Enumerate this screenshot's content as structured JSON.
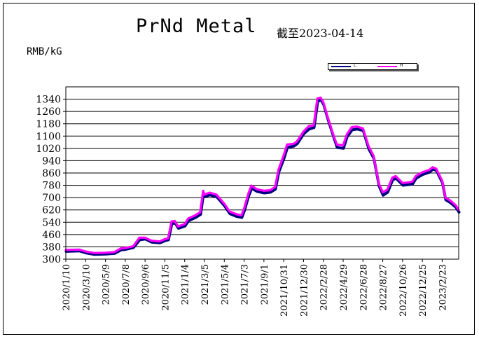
{
  "chart_data": {
    "type": "line",
    "title": "PrNd Metal",
    "subtitle": "截至2023-04-14",
    "ylabel": "RMB/kG",
    "xlabel": "",
    "ylim": [
      300,
      1420
    ],
    "yticks": [
      300,
      380,
      460,
      540,
      620,
      700,
      780,
      860,
      940,
      1020,
      1100,
      1180,
      1260,
      1340
    ],
    "xlim": [
      "2020-01-10",
      "2023-04-14"
    ],
    "xticks": [
      "2020/1/10",
      "2020/3/10",
      "2020/5/9",
      "2020/7/8",
      "2020/9/6",
      "2020/11/5",
      "2021/1/4",
      "2021/3/5",
      "2021/5/4",
      "2021/7/3",
      "2021/9/1",
      "2021/10/31",
      "2021/12/30",
      "2022/2/28",
      "2022/4/29",
      "2022/6/28",
      "2022/8/27",
      "2022/10/26",
      "2022/12/25",
      "2023/2/23"
    ],
    "grid": "horizontal",
    "legend_position": "top-right",
    "series": [
      {
        "name": "L",
        "color": "#000080",
        "points": [
          [
            "2020-01-10",
            355
          ],
          [
            "2020-02-20",
            358
          ],
          [
            "2020-03-10",
            345
          ],
          [
            "2020-04-05",
            335
          ],
          [
            "2020-05-09",
            338
          ],
          [
            "2020-06-05",
            342
          ],
          [
            "2020-06-25",
            365
          ],
          [
            "2020-07-08",
            368
          ],
          [
            "2020-08-01",
            380
          ],
          [
            "2020-08-20",
            430
          ],
          [
            "2020-09-06",
            435
          ],
          [
            "2020-09-25",
            415
          ],
          [
            "2020-10-20",
            410
          ],
          [
            "2020-11-05",
            425
          ],
          [
            "2020-11-15",
            430
          ],
          [
            "2020-11-25",
            535
          ],
          [
            "2020-12-05",
            540
          ],
          [
            "2020-12-15",
            505
          ],
          [
            "2021-01-04",
            520
          ],
          [
            "2021-01-15",
            555
          ],
          [
            "2021-02-05",
            575
          ],
          [
            "2021-02-20",
            595
          ],
          [
            "2021-03-01",
            728
          ],
          [
            "2021-03-05",
            710
          ],
          [
            "2021-03-20",
            722
          ],
          [
            "2021-04-10",
            710
          ],
          [
            "2021-05-04",
            650
          ],
          [
            "2021-05-20",
            600
          ],
          [
            "2021-06-10",
            582
          ],
          [
            "2021-06-25",
            575
          ],
          [
            "2021-07-03",
            620
          ],
          [
            "2021-07-15",
            710
          ],
          [
            "2021-07-25",
            765
          ],
          [
            "2021-08-10",
            745
          ],
          [
            "2021-09-01",
            735
          ],
          [
            "2021-09-20",
            740
          ],
          [
            "2021-10-05",
            760
          ],
          [
            "2021-10-15",
            870
          ],
          [
            "2021-10-31",
            960
          ],
          [
            "2021-11-10",
            1030
          ],
          [
            "2021-11-30",
            1040
          ],
          [
            "2021-12-10",
            1055
          ],
          [
            "2021-12-30",
            1120
          ],
          [
            "2022-01-15",
            1150
          ],
          [
            "2022-01-30",
            1160
          ],
          [
            "2022-02-10",
            1330
          ],
          [
            "2022-02-20",
            1340
          ],
          [
            "2022-02-28",
            1310
          ],
          [
            "2022-03-15",
            1200
          ],
          [
            "2022-03-30",
            1100
          ],
          [
            "2022-04-10",
            1030
          ],
          [
            "2022-04-29",
            1025
          ],
          [
            "2022-05-10",
            1100
          ],
          [
            "2022-05-25",
            1145
          ],
          [
            "2022-06-10",
            1150
          ],
          [
            "2022-06-28",
            1140
          ],
          [
            "2022-07-15",
            1020
          ],
          [
            "2022-07-30",
            960
          ],
          [
            "2022-08-15",
            780
          ],
          [
            "2022-08-27",
            720
          ],
          [
            "2022-09-10",
            740
          ],
          [
            "2022-09-25",
            820
          ],
          [
            "2022-10-05",
            830
          ],
          [
            "2022-10-26",
            785
          ],
          [
            "2022-11-15",
            790
          ],
          [
            "2022-11-25",
            795
          ],
          [
            "2022-12-05",
            830
          ],
          [
            "2022-12-25",
            855
          ],
          [
            "2023-01-15",
            870
          ],
          [
            "2023-01-25",
            890
          ],
          [
            "2023-02-05",
            880
          ],
          [
            "2023-02-23",
            800
          ],
          [
            "2023-03-05",
            690
          ],
          [
            "2023-03-20",
            670
          ],
          [
            "2023-04-05",
            640
          ],
          [
            "2023-04-14",
            610
          ]
        ]
      },
      {
        "name": "H",
        "color": "#ff00ff",
        "points": [
          [
            "2020-01-10",
            360
          ],
          [
            "2020-02-20",
            362
          ],
          [
            "2020-03-10",
            350
          ],
          [
            "2020-04-05",
            340
          ],
          [
            "2020-05-09",
            342
          ],
          [
            "2020-06-05",
            346
          ],
          [
            "2020-06-25",
            370
          ],
          [
            "2020-07-08",
            372
          ],
          [
            "2020-08-01",
            384
          ],
          [
            "2020-08-20",
            440
          ],
          [
            "2020-09-06",
            440
          ],
          [
            "2020-09-25",
            420
          ],
          [
            "2020-10-20",
            415
          ],
          [
            "2020-11-05",
            430
          ],
          [
            "2020-11-15",
            435
          ],
          [
            "2020-11-25",
            545
          ],
          [
            "2020-12-05",
            548
          ],
          [
            "2020-12-15",
            512
          ],
          [
            "2021-01-04",
            528
          ],
          [
            "2021-01-15",
            565
          ],
          [
            "2021-02-05",
            585
          ],
          [
            "2021-02-20",
            605
          ],
          [
            "2021-03-01",
            745
          ],
          [
            "2021-03-05",
            720
          ],
          [
            "2021-03-20",
            732
          ],
          [
            "2021-04-10",
            720
          ],
          [
            "2021-05-04",
            660
          ],
          [
            "2021-05-20",
            610
          ],
          [
            "2021-06-10",
            592
          ],
          [
            "2021-06-25",
            585
          ],
          [
            "2021-07-03",
            630
          ],
          [
            "2021-07-15",
            720
          ],
          [
            "2021-07-25",
            778
          ],
          [
            "2021-08-10",
            755
          ],
          [
            "2021-09-01",
            745
          ],
          [
            "2021-09-20",
            748
          ],
          [
            "2021-10-05",
            770
          ],
          [
            "2021-10-15",
            880
          ],
          [
            "2021-10-31",
            975
          ],
          [
            "2021-11-10",
            1045
          ],
          [
            "2021-11-30",
            1050
          ],
          [
            "2021-12-10",
            1065
          ],
          [
            "2021-12-30",
            1130
          ],
          [
            "2022-01-15",
            1165
          ],
          [
            "2022-01-30",
            1170
          ],
          [
            "2022-02-10",
            1345
          ],
          [
            "2022-02-20",
            1350
          ],
          [
            "2022-02-28",
            1320
          ],
          [
            "2022-03-15",
            1210
          ],
          [
            "2022-03-30",
            1110
          ],
          [
            "2022-04-10",
            1045
          ],
          [
            "2022-04-29",
            1040
          ],
          [
            "2022-05-10",
            1110
          ],
          [
            "2022-05-25",
            1158
          ],
          [
            "2022-06-10",
            1162
          ],
          [
            "2022-06-28",
            1150
          ],
          [
            "2022-07-15",
            1035
          ],
          [
            "2022-07-30",
            972
          ],
          [
            "2022-08-15",
            792
          ],
          [
            "2022-08-27",
            735
          ],
          [
            "2022-09-10",
            752
          ],
          [
            "2022-09-25",
            830
          ],
          [
            "2022-10-05",
            840
          ],
          [
            "2022-10-26",
            795
          ],
          [
            "2022-11-15",
            800
          ],
          [
            "2022-11-25",
            805
          ],
          [
            "2022-12-05",
            840
          ],
          [
            "2022-12-25",
            865
          ],
          [
            "2023-01-15",
            880
          ],
          [
            "2023-01-25",
            898
          ],
          [
            "2023-02-05",
            888
          ],
          [
            "2023-02-23",
            810
          ],
          [
            "2023-03-05",
            700
          ],
          [
            "2023-03-20",
            680
          ],
          [
            "2023-04-05",
            650
          ],
          [
            "2023-04-14",
            620
          ]
        ]
      }
    ]
  }
}
